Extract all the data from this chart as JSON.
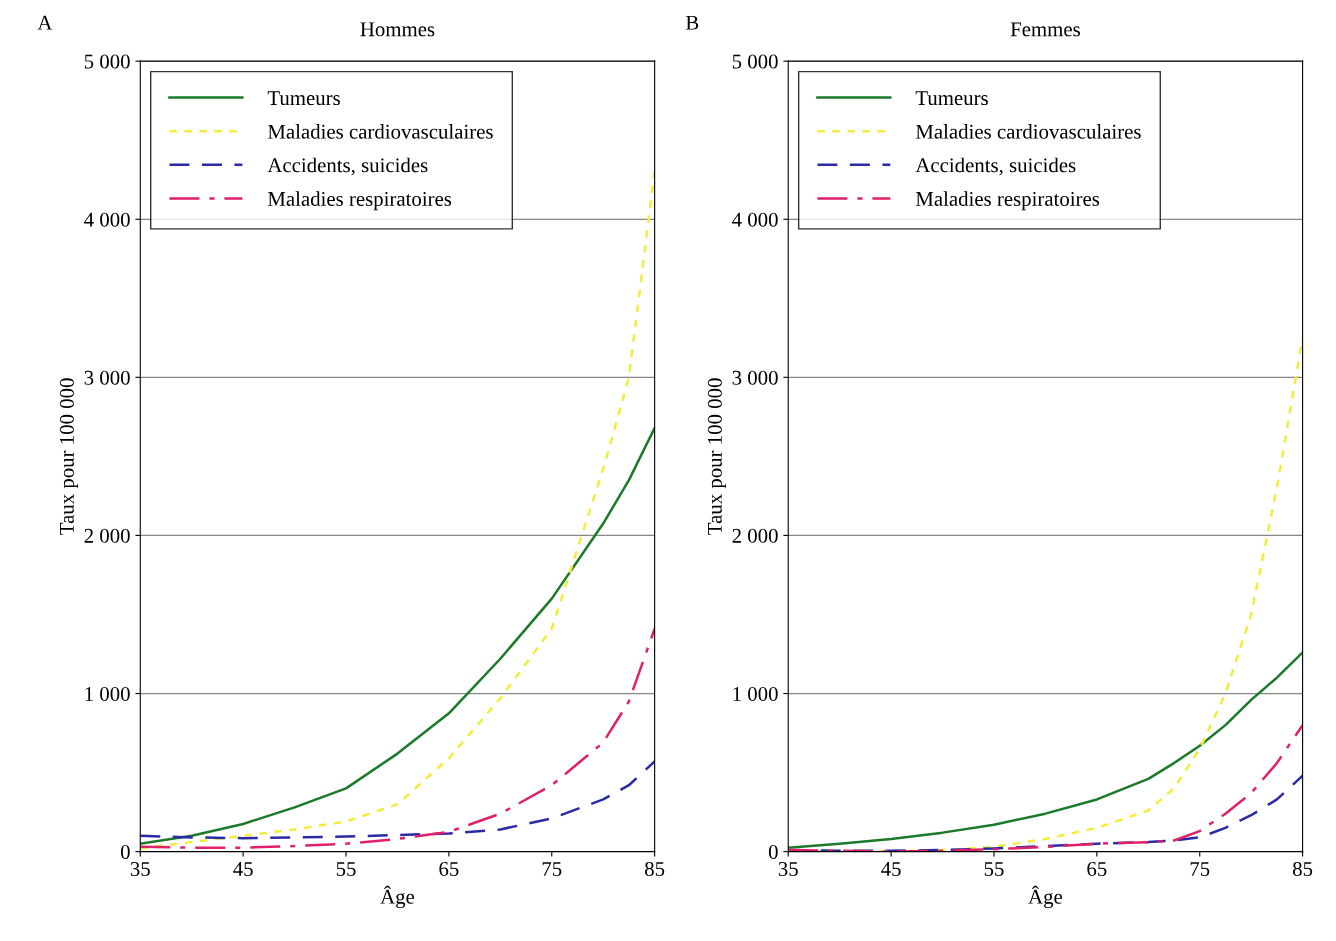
{
  "chart_data": [
    {
      "type": "line",
      "title": "Hommes",
      "xlabel": "Âge",
      "ylabel": "Taux pour 100 000",
      "annotations": [
        "A"
      ],
      "x": [
        35,
        40,
        45,
        50,
        55,
        60,
        65,
        70,
        75,
        80,
        82.5,
        85
      ],
      "series": [
        {
          "name": "Tumeurs",
          "color": "#1a7a2a",
          "line_style": "solid",
          "values": [
            50,
            100,
            175,
            280,
            400,
            620,
            875,
            1220,
            1600,
            2075,
            2350,
            2680
          ]
        },
        {
          "name": "Maladies cardiovasculaires",
          "color": "#f2ec3a",
          "line_style": "dotted",
          "values": [
            20,
            60,
            100,
            140,
            190,
            300,
            590,
            970,
            1410,
            2420,
            3000,
            4300
          ]
        },
        {
          "name": "Accidents, suicides",
          "color": "#2a2aa8",
          "line_style": "dashed",
          "values": [
            100,
            90,
            85,
            90,
            95,
            105,
            115,
            140,
            210,
            330,
            420,
            570
          ]
        },
        {
          "name": "Maladies respiratoires",
          "color": "#e0206a",
          "line_style": "dashdot",
          "values": [
            30,
            25,
            25,
            35,
            50,
            80,
            125,
            240,
            420,
            690,
            950,
            1410
          ]
        }
      ],
      "xlim": [
        35,
        85
      ],
      "xticks": [
        35,
        45,
        55,
        65,
        75,
        85
      ],
      "ylim": [
        0,
        5000
      ],
      "yticks": [
        0,
        {
          "value": 1000,
          "label": "1 000"
        },
        {
          "value": 2000,
          "label": "2 000"
        },
        {
          "value": 3000,
          "label": "3 000"
        },
        {
          "value": 4000,
          "label": "4 000"
        },
        {
          "value": 5000,
          "label": "5 000"
        }
      ],
      "grid": "y",
      "legend": "top left"
    },
    {
      "type": "line",
      "title": "Femmes",
      "xlabel": "Âge",
      "ylabel": "Taux pour 100 000",
      "annotations": [
        "B"
      ],
      "x": [
        35,
        40,
        45,
        50,
        55,
        60,
        65,
        70,
        72.5,
        75,
        77.5,
        80,
        82.5,
        85
      ],
      "series": [
        {
          "name": "Tumeurs",
          "color": "#1a7a2a",
          "line_style": "solid",
          "values": [
            25,
            50,
            80,
            120,
            170,
            240,
            330,
            460,
            560,
            670,
            800,
            960,
            1100,
            1260
          ]
        },
        {
          "name": "Maladies cardiovasculaires",
          "color": "#f2ec3a",
          "line_style": "dotted",
          "values": [
            10,
            0,
            0,
            10,
            30,
            80,
            150,
            260,
            400,
            650,
            1000,
            1500,
            2300,
            3250
          ]
        },
        {
          "name": "Accidents, suicides",
          "color": "#2a2aa8",
          "line_style": "dashed",
          "values": [
            10,
            5,
            5,
            10,
            20,
            35,
            50,
            60,
            70,
            90,
            150,
            230,
            330,
            480
          ]
        },
        {
          "name": "Maladies respiratoires",
          "color": "#e0206a",
          "line_style": "dashdot",
          "values": [
            10,
            5,
            0,
            5,
            15,
            30,
            50,
            60,
            70,
            130,
            240,
            370,
            560,
            800
          ]
        }
      ],
      "xlim": [
        35,
        85
      ],
      "xticks": [
        35,
        45,
        55,
        65,
        75,
        85
      ],
      "ylim": [
        0,
        5000
      ],
      "yticks": [
        0,
        {
          "value": 1000,
          "label": "1 000"
        },
        {
          "value": 2000,
          "label": "2 000"
        },
        {
          "value": 3000,
          "label": "3 000"
        },
        {
          "value": 4000,
          "label": "4 000"
        },
        {
          "value": 5000,
          "label": "5 000"
        }
      ],
      "grid": "y",
      "legend": "top left"
    }
  ]
}
